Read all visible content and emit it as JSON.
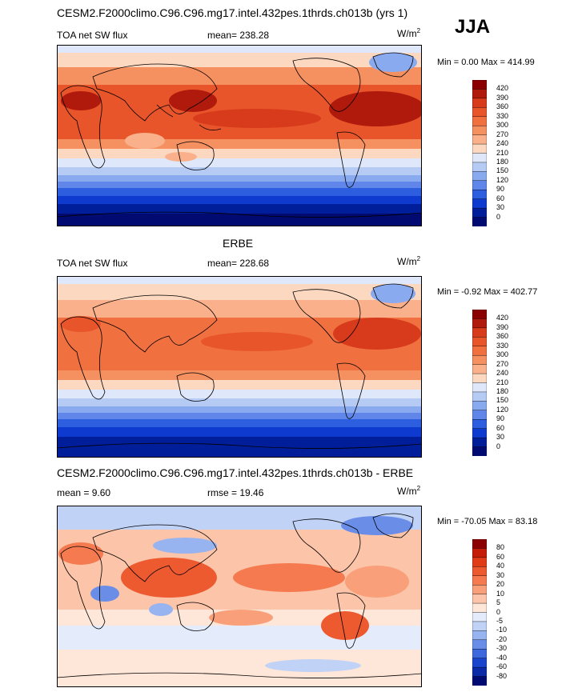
{
  "header": {
    "season": "JJA"
  },
  "panels": [
    {
      "title": "CESM2.F2000climo.C96.C96.mg17.intel.432pes.1thrds.ch013b (yrs 1)",
      "left_label": "TOA net SW flux",
      "center_label": "mean= 238.28",
      "units_main": "W/m",
      "units_sup": "2",
      "minmax": "Min =   0.00 Max = 414.99",
      "colorbar_labels": [
        "420",
        "390",
        "360",
        "330",
        "300",
        "270",
        "240",
        "210",
        "180",
        "150",
        "120",
        "90",
        "60",
        "30",
        "0"
      ]
    },
    {
      "title": "ERBE",
      "left_label": "TOA net SW flux",
      "center_label": "mean= 228.68",
      "units_main": "W/m",
      "units_sup": "2",
      "minmax": "Min =  -0.92 Max = 402.77",
      "colorbar_labels": [
        "420",
        "390",
        "360",
        "330",
        "300",
        "270",
        "240",
        "210",
        "180",
        "150",
        "120",
        "90",
        "60",
        "30",
        "0"
      ]
    },
    {
      "title": "CESM2.F2000climo.C96.C96.mg17.intel.432pes.1thrds.ch013b - ERBE",
      "left_label": "mean =   9.60",
      "center_label": "rmse =  19.46",
      "units_main": "W/m",
      "units_sup": "2",
      "minmax": "Min = -70.05 Max =  83.18",
      "colorbar_labels": [
        "80",
        "60",
        "40",
        "30",
        "20",
        "10",
        "5",
        "0",
        "-5",
        "-10",
        "-20",
        "-30",
        "-40",
        "-60",
        "-80"
      ]
    }
  ],
  "colors": {
    "abs_scale": [
      "#8b0000",
      "#b01a0c",
      "#d83a1c",
      "#e8552a",
      "#f07040",
      "#f59060",
      "#fab08a",
      "#fdd8c0",
      "#dfe8fb",
      "#b6cbf4",
      "#8aaaf0",
      "#5f86e8",
      "#2e5ee0",
      "#0f3ad0",
      "#001e9a",
      "#000a70"
    ],
    "diff_scale": [
      "#8b0000",
      "#c41c08",
      "#e03c18",
      "#ee5a30",
      "#f57a50",
      "#f9a07a",
      "#fcc4a8",
      "#fee6d8",
      "#e4ecfc",
      "#c0d2f6",
      "#98b4f0",
      "#6a8ee8",
      "#3e68de",
      "#1a44cc",
      "#0a2aa8",
      "#000a70"
    ],
    "coast": "#000000"
  }
}
